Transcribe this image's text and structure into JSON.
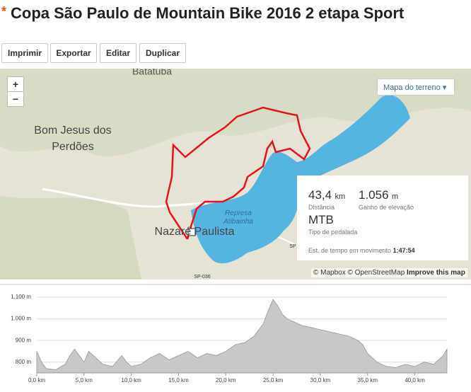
{
  "header": {
    "star": "*",
    "title": "Copa São Paulo de Mountain Bike 2016 2 etapa Sport"
  },
  "buttons": [
    "Imprimir",
    "Exportar",
    "Editar",
    "Duplicar"
  ],
  "map": {
    "zoom_in": "+",
    "zoom_out": "−",
    "layer_button": "Mapa do terreno",
    "places": [
      "Batatuba",
      "Bom Jesus dos",
      "Perdões",
      "Nazaré Paulista",
      "Represa",
      "Atibainha",
      "SP-036",
      "SP"
    ],
    "attribution": [
      "© Mapbox",
      "© OpenStreetMap",
      "Improve this map"
    ]
  },
  "stats": {
    "distance": "43,4",
    "distance_unit": "km",
    "distance_label": "Distância",
    "elevation": "1.056",
    "elevation_unit": "m",
    "elevation_label": "Ganho de elevação",
    "ride_type": "MTB",
    "ride_type_label": "Tipo de pedalada",
    "moving_time_label": "Est. de tempo em movimento",
    "moving_time": "1:47:54"
  },
  "chart_data": {
    "type": "area",
    "color": "#c8c8c8",
    "x": [
      0,
      0.5,
      1,
      2,
      3,
      3.5,
      4,
      4.5,
      5,
      5.5,
      6,
      7,
      8,
      9,
      9.5,
      10,
      11,
      12,
      13,
      14,
      15,
      16,
      17,
      18,
      19,
      20,
      21,
      22,
      23,
      24,
      24.5,
      25,
      25.5,
      26,
      26.5,
      27,
      28,
      29,
      30,
      31,
      32,
      33,
      34,
      34.5,
      35,
      36,
      37,
      38,
      39,
      40,
      41,
      42,
      43,
      43.4
    ],
    "values": [
      850,
      800,
      770,
      765,
      790,
      830,
      860,
      830,
      800,
      850,
      830,
      790,
      780,
      830,
      800,
      780,
      790,
      820,
      840,
      810,
      830,
      850,
      820,
      840,
      830,
      850,
      880,
      890,
      920,
      980,
      1040,
      1090,
      1060,
      1020,
      1000,
      990,
      970,
      960,
      950,
      940,
      930,
      920,
      900,
      880,
      840,
      800,
      780,
      775,
      790,
      780,
      800,
      790,
      830,
      860
    ],
    "xlim": [
      0,
      43.4
    ],
    "ylim": [
      750,
      1100
    ],
    "yticks": [
      {
        "value": 800,
        "label": "800 m"
      },
      {
        "value": 900,
        "label": "900 m"
      },
      {
        "value": 1000,
        "label": "1.000 m"
      },
      {
        "value": 1100,
        "label": "1.100 m"
      }
    ],
    "xticks": [
      {
        "value": 0,
        "label": "0,0 km"
      },
      {
        "value": 5,
        "label": "5,0 km"
      },
      {
        "value": 10,
        "label": "10,0 km"
      },
      {
        "value": 15,
        "label": "15,0 km"
      },
      {
        "value": 20,
        "label": "20,0 km"
      },
      {
        "value": 25,
        "label": "25,0 km"
      },
      {
        "value": 30,
        "label": "30,0 km"
      },
      {
        "value": 35,
        "label": "35,0 km"
      },
      {
        "value": 40,
        "label": "40,0 km"
      }
    ],
    "grid": true
  }
}
